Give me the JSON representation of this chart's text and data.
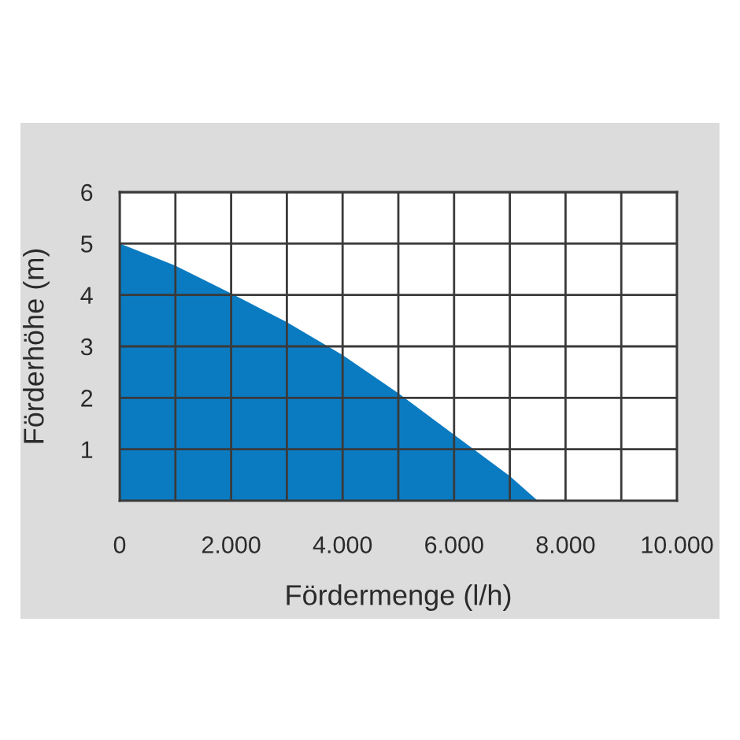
{
  "chart_data": {
    "type": "area",
    "xlabel": "Fördermenge (l/h)",
    "ylabel": "Förderhöhe (m)",
    "x": [
      0,
      1000,
      2000,
      3000,
      4000,
      5000,
      6000,
      7000,
      7500
    ],
    "values": [
      5,
      4.57,
      4.03,
      3.47,
      2.83,
      2.09,
      1.28,
      0.48,
      0
    ],
    "color": "#0a7bc1",
    "xlim": [
      0,
      10000
    ],
    "ylim": [
      0,
      6
    ],
    "xticks": [
      0,
      {
        "value": 1000,
        "label": null
      },
      {
        "value": 2000,
        "label": "2.000"
      },
      {
        "value": 3000,
        "label": null
      },
      {
        "value": 4000,
        "label": "4.000"
      },
      {
        "value": 5000,
        "label": null
      },
      {
        "value": 6000,
        "label": "6.000"
      },
      {
        "value": 7000,
        "label": null
      },
      {
        "value": 8000,
        "label": "8.000"
      },
      {
        "value": 9000,
        "label": null
      },
      {
        "value": 10000,
        "label": "10.000"
      }
    ],
    "yticks": [
      1,
      2,
      3,
      4,
      5,
      6
    ],
    "grid": true
  }
}
